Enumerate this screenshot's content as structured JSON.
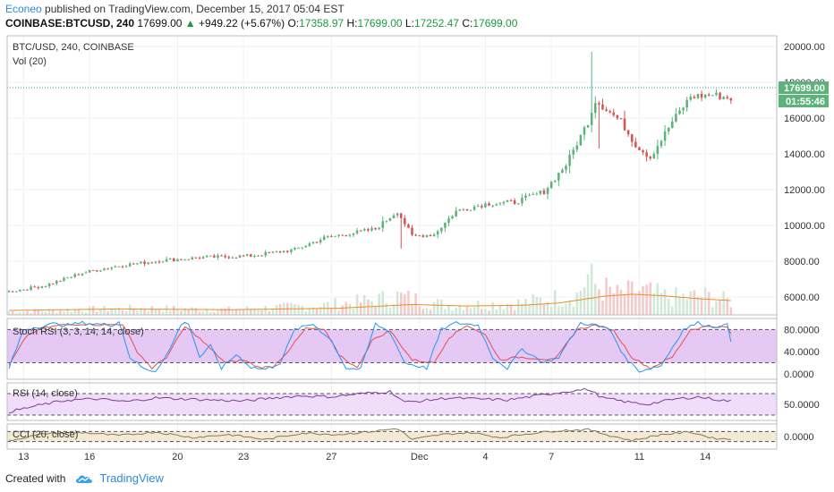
{
  "header": {
    "author": "Econeo",
    "published": "published on TradingView.com, December 15, 2017 05:04 EST",
    "symbol": "COINBASE:BTCUSD, 240",
    "price": "17699.00",
    "change_arrow": "▲",
    "change": "+949.22 (+5.67%)",
    "o_label": "O:",
    "o_value": "17358.97",
    "h_label": "H:",
    "h_value": "17699.00",
    "l_label": "L:",
    "l_value": "17252.47",
    "c_label": "C:",
    "c_value": "17699.00"
  },
  "footer": {
    "created_with": "Created with",
    "brand": "TradingView",
    "logo_icon": "tradingview-cloud-icon"
  },
  "colors": {
    "up": "#26a69a",
    "down": "#ef5350",
    "candle_up": "#5cb37a",
    "candle_down": "#d9534f",
    "volume_ma": "#f08a24",
    "stoch_k": "#2196f3",
    "stoch_d": "#e05050",
    "stoch_band": "#e6c8f5",
    "rsi_band": "#f0dcfb",
    "cci_band": "#f2ead6",
    "last_price_line": "#26a69a"
  },
  "chart_data": [
    {
      "type": "candlestick",
      "title": "BTC/USD, 240, COINBASE",
      "subtitle": "Vol (20)",
      "y_ticks": [
        "20000.00",
        "18000.00",
        "16000.00",
        "14000.00",
        "12000.00",
        "10000.00",
        "8000.00",
        "6000.00"
      ],
      "ylim": [
        5000,
        20600
      ],
      "last_price_label": "17699.00",
      "countdown_label": "01:55:46",
      "x_ticks": [
        "13",
        "16",
        "20",
        "23",
        "27",
        "Dec",
        "4",
        "7",
        "11",
        "14"
      ],
      "x_tick_positions": [
        0,
        18,
        42,
        60,
        84,
        108,
        126,
        144,
        168,
        186
      ],
      "bar_count": 198,
      "anchors": [
        [
          0,
          6300
        ],
        [
          10,
          6650
        ],
        [
          20,
          7350
        ],
        [
          30,
          7750
        ],
        [
          42,
          8050
        ],
        [
          52,
          8200
        ],
        [
          66,
          8300
        ],
        [
          78,
          8650
        ],
        [
          86,
          9300
        ],
        [
          100,
          9800
        ],
        [
          106,
          10800
        ],
        [
          110,
          9400
        ],
        [
          116,
          9500
        ],
        [
          122,
          10800
        ],
        [
          130,
          11200
        ],
        [
          138,
          11300
        ],
        [
          146,
          11900
        ],
        [
          152,
          13400
        ],
        [
          158,
          15800
        ],
        [
          160,
          17000
        ],
        [
          163,
          16500
        ],
        [
          167,
          15800
        ],
        [
          171,
          14500
        ],
        [
          175,
          13800
        ],
        [
          181,
          15800
        ],
        [
          186,
          17200
        ],
        [
          192,
          17300
        ],
        [
          197,
          17100
        ],
        [
          203,
          16900
        ],
        [
          207,
          17699
        ]
      ],
      "volume_anchors": [
        [
          0,
          5
        ],
        [
          20,
          8
        ],
        [
          35,
          10
        ],
        [
          60,
          8
        ],
        [
          85,
          14
        ],
        [
          100,
          22
        ],
        [
          106,
          28
        ],
        [
          120,
          14
        ],
        [
          140,
          18
        ],
        [
          155,
          30
        ],
        [
          158,
          58
        ],
        [
          160,
          45
        ],
        [
          166,
          30
        ],
        [
          172,
          36
        ],
        [
          180,
          26
        ],
        [
          190,
          28
        ],
        [
          197,
          20
        ],
        [
          203,
          25
        ],
        [
          207,
          10
        ]
      ],
      "volume_ma_anchors": [
        [
          0,
          6
        ],
        [
          30,
          8
        ],
        [
          60,
          7
        ],
        [
          90,
          9
        ],
        [
          110,
          14
        ],
        [
          125,
          12
        ],
        [
          140,
          13
        ],
        [
          150,
          16
        ],
        [
          162,
          25
        ],
        [
          170,
          28
        ],
        [
          178,
          26
        ],
        [
          188,
          22
        ],
        [
          198,
          19
        ],
        [
          207,
          17
        ]
      ]
    },
    {
      "type": "line",
      "title": "Stoch RSI (3, 3, 14, 14, close)",
      "y_ticks": [
        "80.0000",
        "40.0000",
        "0.0000"
      ],
      "ylim": [
        -10,
        100
      ],
      "bands": [
        20,
        80
      ],
      "k_anchors": [
        [
          0,
          10
        ],
        [
          4,
          80
        ],
        [
          8,
          85
        ],
        [
          12,
          90
        ],
        [
          16,
          88
        ],
        [
          20,
          92
        ],
        [
          24,
          90
        ],
        [
          28,
          88
        ],
        [
          30,
          95
        ],
        [
          33,
          30
        ],
        [
          37,
          8
        ],
        [
          40,
          5
        ],
        [
          44,
          45
        ],
        [
          47,
          90
        ],
        [
          49,
          92
        ],
        [
          52,
          30
        ],
        [
          55,
          50
        ],
        [
          58,
          10
        ],
        [
          62,
          35
        ],
        [
          66,
          12
        ],
        [
          70,
          8
        ],
        [
          74,
          20
        ],
        [
          78,
          80
        ],
        [
          83,
          90
        ],
        [
          88,
          60
        ],
        [
          92,
          10
        ],
        [
          96,
          8
        ],
        [
          100,
          90
        ],
        [
          104,
          75
        ],
        [
          108,
          20
        ],
        [
          114,
          10
        ],
        [
          118,
          80
        ],
        [
          122,
          92
        ],
        [
          128,
          88
        ],
        [
          132,
          30
        ],
        [
          136,
          10
        ],
        [
          140,
          45
        ],
        [
          146,
          20
        ],
        [
          150,
          30
        ],
        [
          156,
          92
        ],
        [
          160,
          88
        ],
        [
          164,
          80
        ],
        [
          168,
          30
        ],
        [
          172,
          5
        ],
        [
          178,
          15
        ],
        [
          184,
          80
        ],
        [
          188,
          92
        ],
        [
          192,
          85
        ],
        [
          196,
          88
        ],
        [
          198,
          30
        ],
        [
          202,
          5
        ],
        [
          205,
          20
        ],
        [
          208,
          80
        ]
      ],
      "d_anchors": [
        [
          0,
          15
        ],
        [
          5,
          70
        ],
        [
          9,
          82
        ],
        [
          14,
          88
        ],
        [
          20,
          90
        ],
        [
          26,
          88
        ],
        [
          31,
          90
        ],
        [
          35,
          40
        ],
        [
          39,
          10
        ],
        [
          43,
          30
        ],
        [
          48,
          85
        ],
        [
          51,
          70
        ],
        [
          55,
          45
        ],
        [
          59,
          20
        ],
        [
          64,
          25
        ],
        [
          68,
          12
        ],
        [
          72,
          12
        ],
        [
          76,
          40
        ],
        [
          81,
          82
        ],
        [
          86,
          80
        ],
        [
          90,
          35
        ],
        [
          95,
          10
        ],
        [
          99,
          60
        ],
        [
          104,
          78
        ],
        [
          110,
          25
        ],
        [
          116,
          20
        ],
        [
          120,
          65
        ],
        [
          125,
          88
        ],
        [
          130,
          70
        ],
        [
          134,
          25
        ],
        [
          139,
          30
        ],
        [
          144,
          28
        ],
        [
          149,
          25
        ],
        [
          155,
          80
        ],
        [
          160,
          88
        ],
        [
          165,
          78
        ],
        [
          170,
          30
        ],
        [
          175,
          10
        ],
        [
          181,
          30
        ],
        [
          186,
          80
        ],
        [
          191,
          86
        ],
        [
          196,
          84
        ],
        [
          200,
          35
        ],
        [
          204,
          10
        ],
        [
          208,
          55
        ]
      ]
    },
    {
      "type": "line",
      "title": "RSI (14, close)",
      "y_ticks": [
        "50.0000"
      ],
      "ylim": [
        20,
        90
      ],
      "bands": [
        30,
        70
      ],
      "anchors": [
        [
          0,
          36
        ],
        [
          8,
          48
        ],
        [
          16,
          58
        ],
        [
          24,
          60
        ],
        [
          32,
          55
        ],
        [
          40,
          62
        ],
        [
          48,
          60
        ],
        [
          56,
          58
        ],
        [
          64,
          56
        ],
        [
          72,
          62
        ],
        [
          80,
          66
        ],
        [
          88,
          64
        ],
        [
          96,
          70
        ],
        [
          104,
          74
        ],
        [
          108,
          54
        ],
        [
          112,
          56
        ],
        [
          120,
          62
        ],
        [
          128,
          60
        ],
        [
          136,
          58
        ],
        [
          144,
          66
        ],
        [
          152,
          74
        ],
        [
          158,
          78
        ],
        [
          162,
          62
        ],
        [
          168,
          55
        ],
        [
          174,
          50
        ],
        [
          182,
          60
        ],
        [
          188,
          64
        ],
        [
          194,
          58
        ],
        [
          200,
          54
        ],
        [
          208,
          62
        ]
      ]
    },
    {
      "type": "line",
      "title": "CCI (20, close)",
      "y_ticks": [
        "0.0000"
      ],
      "ylim": [
        -250,
        250
      ],
      "bands": [
        -100,
        100
      ],
      "anchors": [
        [
          0,
          -80
        ],
        [
          10,
          60
        ],
        [
          20,
          80
        ],
        [
          30,
          20
        ],
        [
          40,
          90
        ],
        [
          50,
          -20
        ],
        [
          60,
          40
        ],
        [
          70,
          -60
        ],
        [
          80,
          70
        ],
        [
          90,
          40
        ],
        [
          100,
          110
        ],
        [
          106,
          160
        ],
        [
          110,
          -60
        ],
        [
          118,
          40
        ],
        [
          126,
          80
        ],
        [
          134,
          -20
        ],
        [
          142,
          60
        ],
        [
          150,
          120
        ],
        [
          158,
          140
        ],
        [
          164,
          20
        ],
        [
          170,
          -80
        ],
        [
          178,
          40
        ],
        [
          186,
          90
        ],
        [
          192,
          -30
        ],
        [
          198,
          -60
        ],
        [
          204,
          -20
        ],
        [
          208,
          60
        ]
      ]
    }
  ]
}
